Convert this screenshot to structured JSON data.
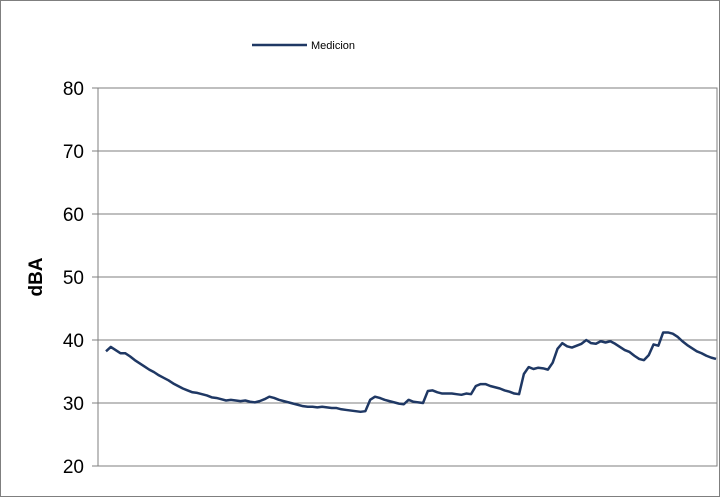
{
  "chart_data": {
    "type": "line",
    "title": "",
    "xlabel": "",
    "ylabel": "dBA",
    "ylim": [
      20,
      80
    ],
    "yticks": [
      20,
      30,
      40,
      50,
      60,
      70,
      80
    ],
    "grid": "horizontal",
    "legend_position": "top",
    "series": [
      {
        "name": "Medicion",
        "color": "#1f3864",
        "values": [
          38.2,
          38.9,
          38.4,
          37.9,
          37.9,
          37.4,
          36.8,
          36.3,
          35.8,
          35.3,
          34.9,
          34.4,
          34.0,
          33.6,
          33.1,
          32.7,
          32.3,
          32.0,
          31.7,
          31.6,
          31.4,
          31.2,
          30.9,
          30.8,
          30.6,
          30.4,
          30.5,
          30.4,
          30.3,
          30.4,
          30.2,
          30.1,
          30.3,
          30.6,
          31.0,
          30.8,
          30.5,
          30.3,
          30.1,
          29.9,
          29.7,
          29.5,
          29.4,
          29.4,
          29.3,
          29.4,
          29.3,
          29.2,
          29.2,
          29.0,
          28.9,
          28.8,
          28.7,
          28.6,
          28.7,
          30.5,
          31.0,
          30.8,
          30.5,
          30.3,
          30.1,
          29.9,
          29.8,
          30.5,
          30.2,
          30.1,
          30.0,
          31.9,
          32.0,
          31.7,
          31.5,
          31.5,
          31.5,
          31.4,
          31.3,
          31.5,
          31.4,
          32.7,
          33.0,
          33.0,
          32.7,
          32.5,
          32.3,
          32.0,
          31.8,
          31.5,
          31.4,
          34.6,
          35.7,
          35.4,
          35.6,
          35.5,
          35.3,
          36.4,
          38.6,
          39.5,
          39.0,
          38.8,
          39.1,
          39.4,
          40.0,
          39.5,
          39.4,
          39.8,
          39.6,
          39.8,
          39.4,
          38.9,
          38.4,
          38.1,
          37.5,
          37.0,
          36.8,
          37.6,
          39.3,
          39.1,
          41.2,
          41.2,
          41.0,
          40.5,
          39.8,
          39.2,
          38.7,
          38.2,
          37.9,
          37.5,
          37.2,
          37.0
        ]
      }
    ]
  }
}
